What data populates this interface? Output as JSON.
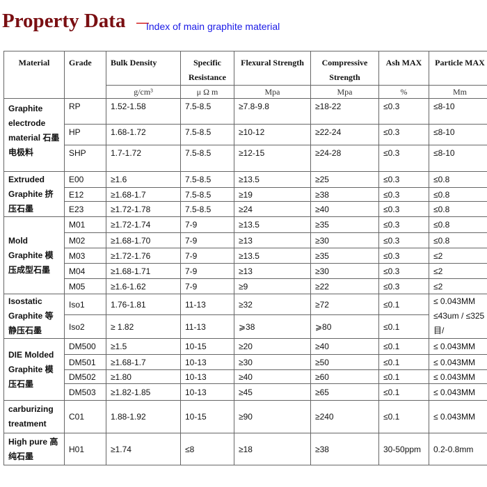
{
  "title": "Property Data",
  "dash": "—",
  "subtitle": "Index of main graphite material",
  "headers": [
    "Material",
    "Grade",
    "Bulk Density",
    "Specific Resistance",
    "Flexural Strength",
    "Compressive Strength",
    "Ash MAX",
    "Particle MAX"
  ],
  "units": [
    "g/cm³",
    "μ Ω m",
    "Mpa",
    "Mpa",
    "%",
    "Mm"
  ],
  "groups": [
    {
      "material": "Graphite electrode material 石墨 电极料",
      "rows": [
        [
          "RP",
          "1.52-1.58",
          "7.5-8.5",
          "≥7.8-9.8",
          "≥18-22",
          "≤0.3",
          "≤8-10"
        ],
        [
          "HP",
          "1.68-1.72",
          "7.5-8.5",
          "≥10-12",
          "≥22-24",
          "≤0.3",
          "≤8-10"
        ],
        [
          "SHP",
          "1.7-1.72",
          "7.5-8.5",
          "≥12-15",
          "≥24-28",
          "≤0.3",
          "≤8-10"
        ]
      ]
    },
    {
      "material": "Extruded Graphite 挤压石墨",
      "rows": [
        [
          "E00",
          "≥1.6",
          "7.5-8.5",
          "≥13.5",
          "≥25",
          "≤0.3",
          "≤0.8"
        ],
        [
          "E12",
          "≥1.68-1.7",
          "7.5-8.5",
          "≥19",
          "≥38",
          "≤0.3",
          "≤0.8"
        ],
        [
          "E23",
          "≥1.72-1.78",
          "7.5-8.5",
          "≥24",
          "≥40",
          "≤0.3",
          "≤0.8"
        ]
      ]
    },
    {
      "material": "Mold Graphite 模压成型石墨",
      "rows": [
        [
          "M01",
          "≥1.72-1.74",
          "7-9",
          "≥13.5",
          "≥35",
          "≤0.3",
          "≤0.8"
        ],
        [
          "M02",
          "≥1.68-1.70",
          "7-9",
          "≥13",
          "≥30",
          "≤0.3",
          "≤0.8"
        ],
        [
          "M03",
          "≥1.72-1.76",
          "7-9",
          "≥13.5",
          "≥35",
          "≤0.3",
          "≤2"
        ],
        [
          "M04",
          "≥1.68-1.71",
          "7-9",
          "≥13",
          "≥30",
          "≤0.3",
          "≤2"
        ],
        [
          "M05",
          "≥1.6-1.62",
          "7-9",
          "≥9",
          "≥22",
          "≤0.3",
          "≤2"
        ]
      ]
    },
    {
      "material": "Isostatic Graphite 等静压石墨",
      "particle_merged": "≤ 0.043MM ≤43um / ≤325 目/",
      "rows": [
        [
          "Iso1",
          "1.76-1.81",
          "11-13",
          "≥32",
          "≥72",
          "≤0.1"
        ],
        [
          "Iso2",
          "≥ 1.82",
          "11-13",
          "⩾38",
          "⩾80",
          "≤0.1"
        ]
      ]
    },
    {
      "material": "DIE Molded Graphite 模压石墨",
      "rows": [
        [
          "DM500",
          "≥1.5",
          "10-15",
          "≥20",
          "≥40",
          "≤0.1",
          "≤ 0.043MM"
        ],
        [
          "DM501",
          "≥1.68-1.7",
          "10-13",
          "≥30",
          "≥50",
          "≤0.1",
          "≤ 0.043MM"
        ],
        [
          "DM502",
          "≥1.80",
          "10-13",
          "≥40",
          "≥60",
          "≤0.1",
          "≤ 0.043MM"
        ],
        [
          "DM503",
          "≥1.82-1.85",
          "10-13",
          "≥45",
          "≥65",
          "≤0.1",
          "≤ 0.043MM"
        ]
      ]
    },
    {
      "material": "carburizing treatment",
      "rows": [
        [
          "C01",
          "1.88-1.92",
          "10-15",
          "≥90",
          "≥240",
          "≤0.1",
          "≤ 0.043MM"
        ]
      ]
    },
    {
      "material": "High pure 高纯石墨",
      "rows": [
        [
          "H01",
          "≥1.74",
          "≤8",
          "≥18",
          "≥38",
          "30-50ppm",
          "0.2-0.8mm"
        ]
      ]
    }
  ]
}
